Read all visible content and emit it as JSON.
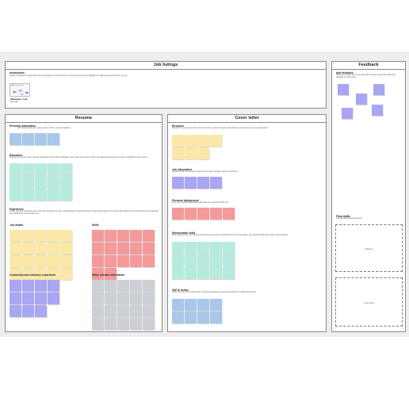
{
  "colors": {
    "blue": "#a9c7ea",
    "yellow": "#fbe8a6",
    "teal": "#b5ecdf",
    "purple": "#a9a6f3",
    "red": "#f49a9a",
    "gray": "#ccd0d6"
  },
  "job_listings": {
    "title": "Job listings",
    "instructions_label": "Instructions",
    "instructions_text": "Gather information from job listings you're interested in to help tailor your resume and cover letter. Highlight key skills and requirements as you go.",
    "thumb_label": "Apply to job in town",
    "thumb_sub": "10 · 2023",
    "whitepaper_label": "Whitepaper / Link",
    "whitepaper_sub": "name.jpg"
  },
  "resume": {
    "title": "Resume",
    "personal_label": "Personal information",
    "personal_text": "Add things such as your name, phone number, email and address.",
    "education_label": "Education",
    "education_text": "Note all your school names, relevant information such as GPA, graduation year, majors and minors, honors, and related coursework you'd want to highlight on your resume.",
    "experience_label": "Experience",
    "experience_text": "List the jobs and internships you've held, then describe your roles, responsibilities and achievements in bullet points. Make sure to tailor each bullet to the job description you're targeting and prioritize the most relevant ones.",
    "job_details_label": "Job details",
    "skills_label": "Skills",
    "leadership_label": "Leadership and volunteer experience",
    "other_label": "Other relevant information"
  },
  "cover_letter": {
    "title": "Cover letter",
    "research_label": "Research",
    "research_text": "Research the company to learn about its culture, mission and values and how they relate to the role you're applying for.",
    "job_info_label": "Job information",
    "job_info_text": "Add the job title, the company name and the hiring manager's name if you have it.",
    "personal_bg_label": "Personal background",
    "personal_bg_text": "Note your strengths and qualities that make you a good fit for this role.",
    "demonstrate_label": "Demonstrate skills",
    "demonstrate_text": "Write examples from your experience that show you have the skills listed in the job description. Use specific details and numbers when possible.",
    "call_label": "Call to action",
    "call_text": "Close your letter with a call to action, such as requesting an interview, and thank the reader for their time."
  },
  "feedback": {
    "title": "Feedback",
    "label": "Add feedback",
    "text": "Share your resume and cover letter with a mentor or peer and collect their feedback as sticky notes.",
    "final_label": "Final drafts",
    "final_text": "Add your final documents below.",
    "resume_box": "Resume",
    "cover_box": "Cover letter"
  }
}
